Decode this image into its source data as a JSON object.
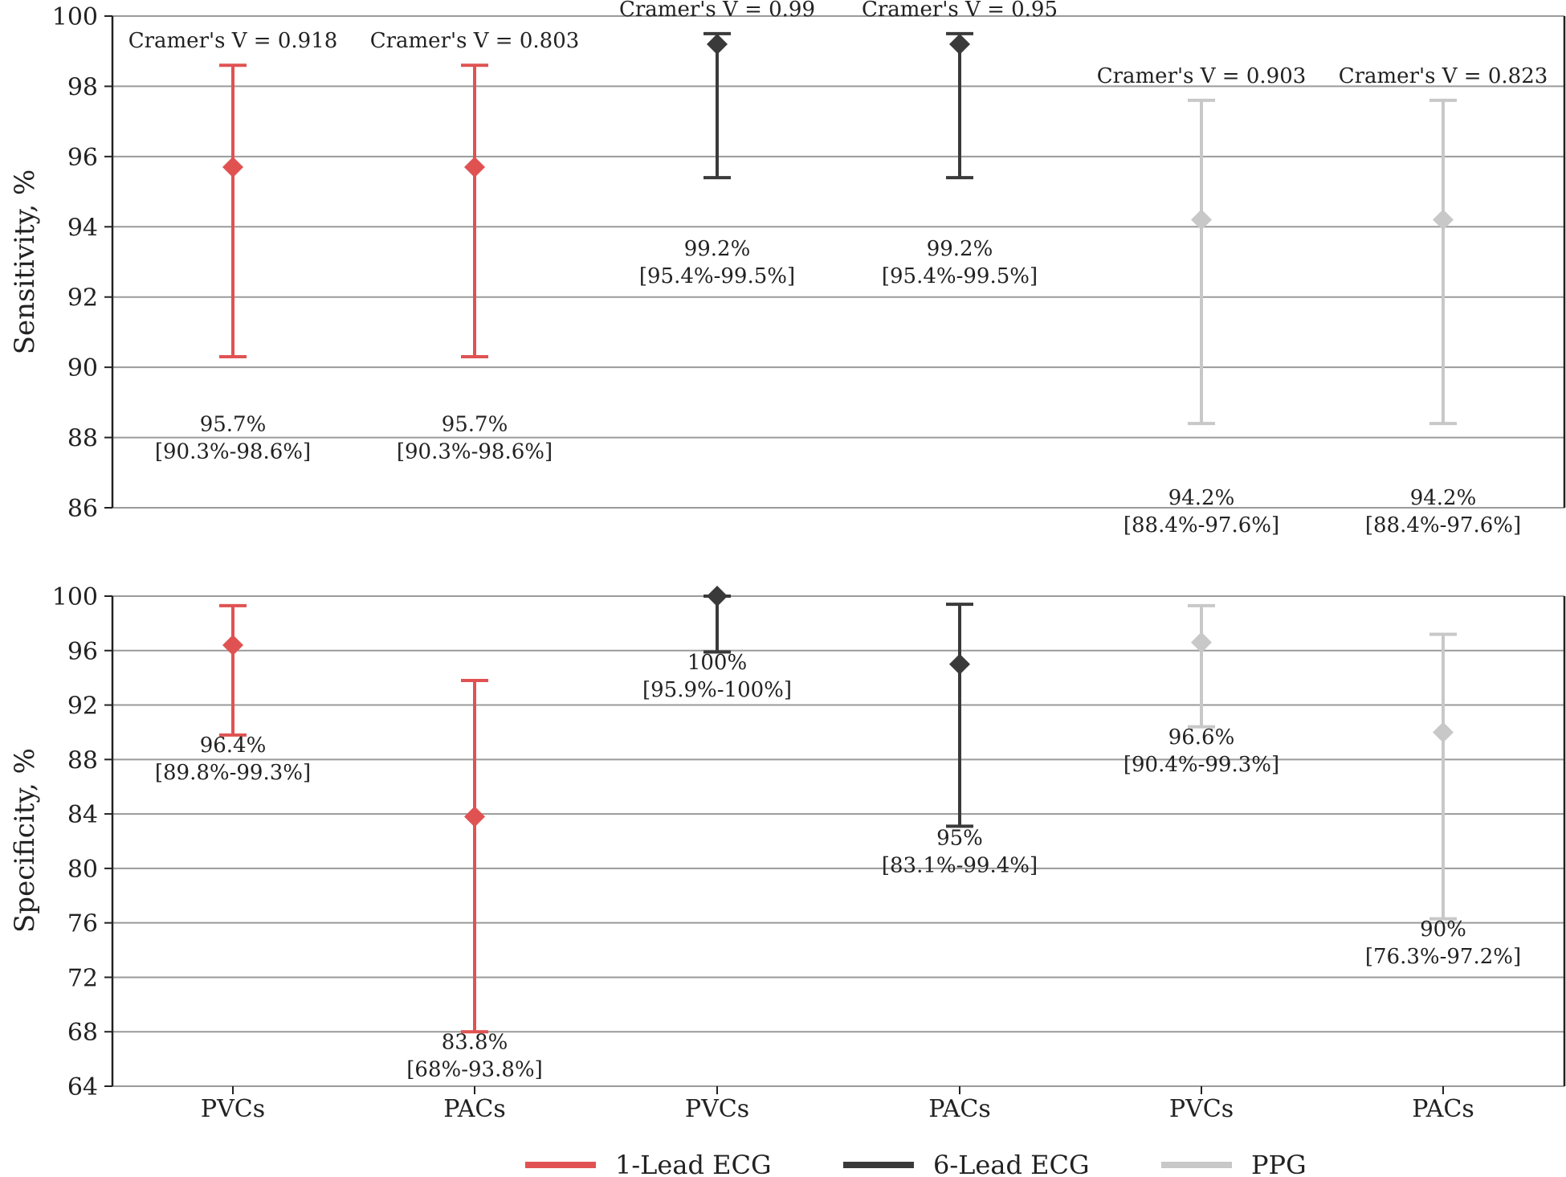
{
  "colors": {
    "1-Lead ECG": "#e05252",
    "6-Lead ECG": "#3a3a3a",
    "PPG": "#c8c8c8",
    "grid": "#9a9a9a",
    "axis": "#222222"
  },
  "legend": [
    {
      "name": "1-Lead ECG"
    },
    {
      "name": "6-Lead ECG"
    },
    {
      "name": "PPG"
    }
  ],
  "chart_data": [
    {
      "type": "errorbar",
      "panel": "top",
      "ylabel": "Sensitivity, %",
      "ylim": [
        86,
        100
      ],
      "yticks": [
        86,
        88,
        90,
        92,
        94,
        96,
        98,
        100
      ],
      "grid": true,
      "categories": [
        "PVCs",
        "PACs",
        "PVCs",
        "PACs",
        "PVCs",
        "PACs"
      ],
      "points": [
        {
          "series": "1-Lead ECG",
          "value": 95.7,
          "low": 90.3,
          "high": 98.6,
          "label": "95.7%",
          "ci_label": "[90.3%-98.6%]",
          "cramer": "Cramer's V = 0.918",
          "label_at": 88.6
        },
        {
          "series": "1-Lead ECG",
          "value": 95.7,
          "low": 90.3,
          "high": 98.6,
          "label": "95.7%",
          "ci_label": "[90.3%-98.6%]",
          "cramer": "Cramer's V = 0.803",
          "label_at": 88.6
        },
        {
          "series": "6-Lead ECG",
          "value": 99.2,
          "low": 95.4,
          "high": 99.5,
          "label": "99.2%",
          "ci_label": "[95.4%-99.5%]",
          "cramer": "Cramer's V = 0.99",
          "label_at": 93.6
        },
        {
          "series": "6-Lead ECG",
          "value": 99.2,
          "low": 95.4,
          "high": 99.5,
          "label": "99.2%",
          "ci_label": "[95.4%-99.5%]",
          "cramer": "Cramer's V = 0.95",
          "label_at": 93.6
        },
        {
          "series": "PPG",
          "value": 94.2,
          "low": 88.4,
          "high": 97.6,
          "label": "94.2%",
          "ci_label": "[88.4%-97.6%]",
          "cramer": "Cramer's V = 0.903",
          "label_at": 86.5
        },
        {
          "series": "PPG",
          "value": 94.2,
          "low": 88.4,
          "high": 97.6,
          "label": "94.2%",
          "ci_label": "[88.4%-97.6%]",
          "cramer": "Cramer's V = 0.823",
          "label_at": 86.5
        }
      ]
    },
    {
      "type": "errorbar",
      "panel": "bottom",
      "ylabel": "Specificity, %",
      "ylim": [
        64,
        100
      ],
      "yticks": [
        64,
        68,
        72,
        76,
        80,
        84,
        88,
        92,
        96,
        100
      ],
      "grid": true,
      "categories": [
        "PVCs",
        "PACs",
        "PVCs",
        "PACs",
        "PVCs",
        "PACs"
      ],
      "points": [
        {
          "series": "1-Lead ECG",
          "value": 96.4,
          "low": 89.8,
          "high": 99.3,
          "label": "96.4%",
          "ci_label": "[89.8%-99.3%]",
          "label_at": 89.6
        },
        {
          "series": "1-Lead ECG",
          "value": 83.8,
          "low": 68.0,
          "high": 93.8,
          "label": "83.8%",
          "ci_label": "[68%-93.8%]",
          "label_at": 67.8
        },
        {
          "series": "6-Lead ECG",
          "value": 100,
          "low": 95.9,
          "high": 100,
          "label": "100%",
          "ci_label": "[95.9%-100%]",
          "label_at": 95.7
        },
        {
          "series": "6-Lead ECG",
          "value": 95.0,
          "low": 83.1,
          "high": 99.4,
          "label": "95%",
          "ci_label": "[83.1%-99.4%]",
          "label_at": 82.8
        },
        {
          "series": "PPG",
          "value": 96.6,
          "low": 90.4,
          "high": 99.3,
          "label": "96.6%",
          "ci_label": "[90.4%-99.3%]",
          "label_at": 90.2
        },
        {
          "series": "PPG",
          "value": 90.0,
          "low": 76.3,
          "high": 97.2,
          "label": "90%",
          "ci_label": "[76.3%-97.2%]",
          "label_at": 76.1
        }
      ]
    }
  ]
}
